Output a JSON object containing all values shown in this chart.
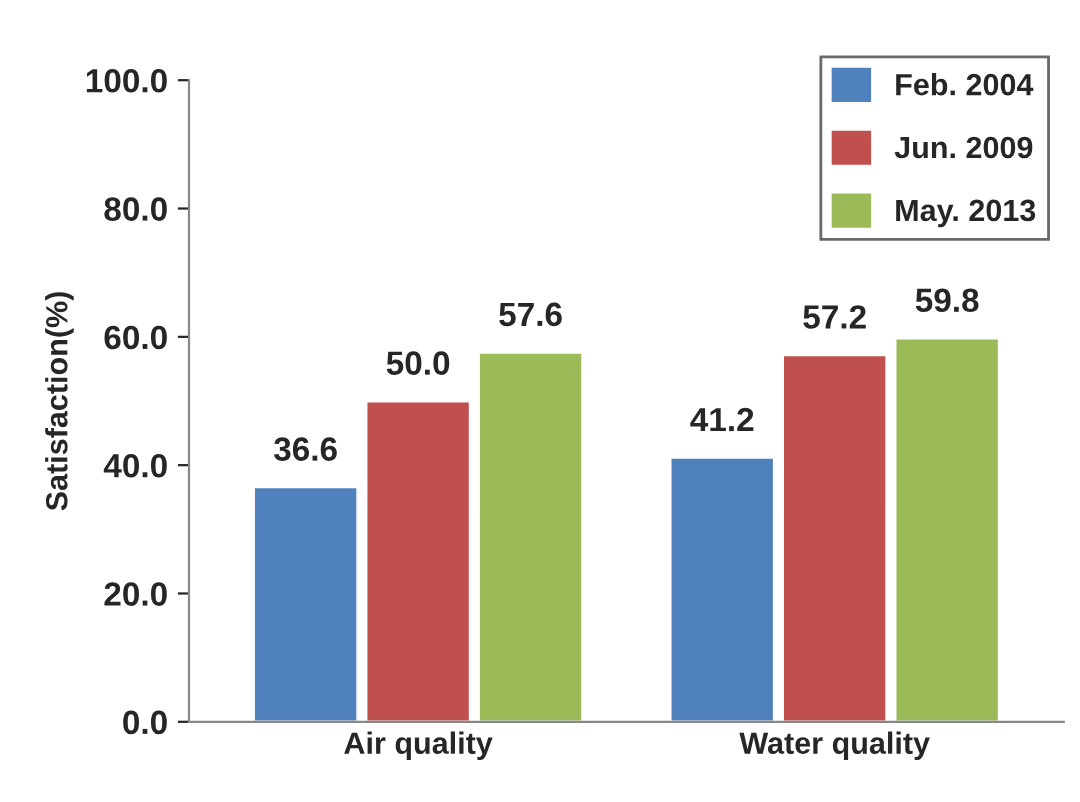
{
  "chart_data": {
    "type": "bar",
    "ylabel": "Satisfaction(%)",
    "categories": [
      "Air quality",
      "Water quality"
    ],
    "series": [
      {
        "name": "Feb. 2004",
        "color": "#4f81bd",
        "values": [
          36.6,
          41.2
        ],
        "value_labels": [
          "36.6",
          "41.2"
        ]
      },
      {
        "name": "Jun. 2009",
        "color": "#c0504d",
        "values": [
          50.0,
          57.2
        ],
        "value_labels": [
          "50.0",
          "57.2"
        ]
      },
      {
        "name": "May. 2013",
        "color": "#9bbb59",
        "values": [
          57.6,
          59.8
        ],
        "value_labels": [
          "57.6",
          "59.8"
        ]
      }
    ],
    "ylim": [
      0,
      100
    ],
    "yticks": [
      {
        "value": 0,
        "label": "0.0"
      },
      {
        "value": 20,
        "label": "20.0"
      },
      {
        "value": 40,
        "label": "40.0"
      },
      {
        "value": 60,
        "label": "60.0"
      },
      {
        "value": 80,
        "label": "80.0"
      },
      {
        "value": 100,
        "label": "100.0"
      }
    ],
    "grid": false,
    "legend": "top right"
  }
}
